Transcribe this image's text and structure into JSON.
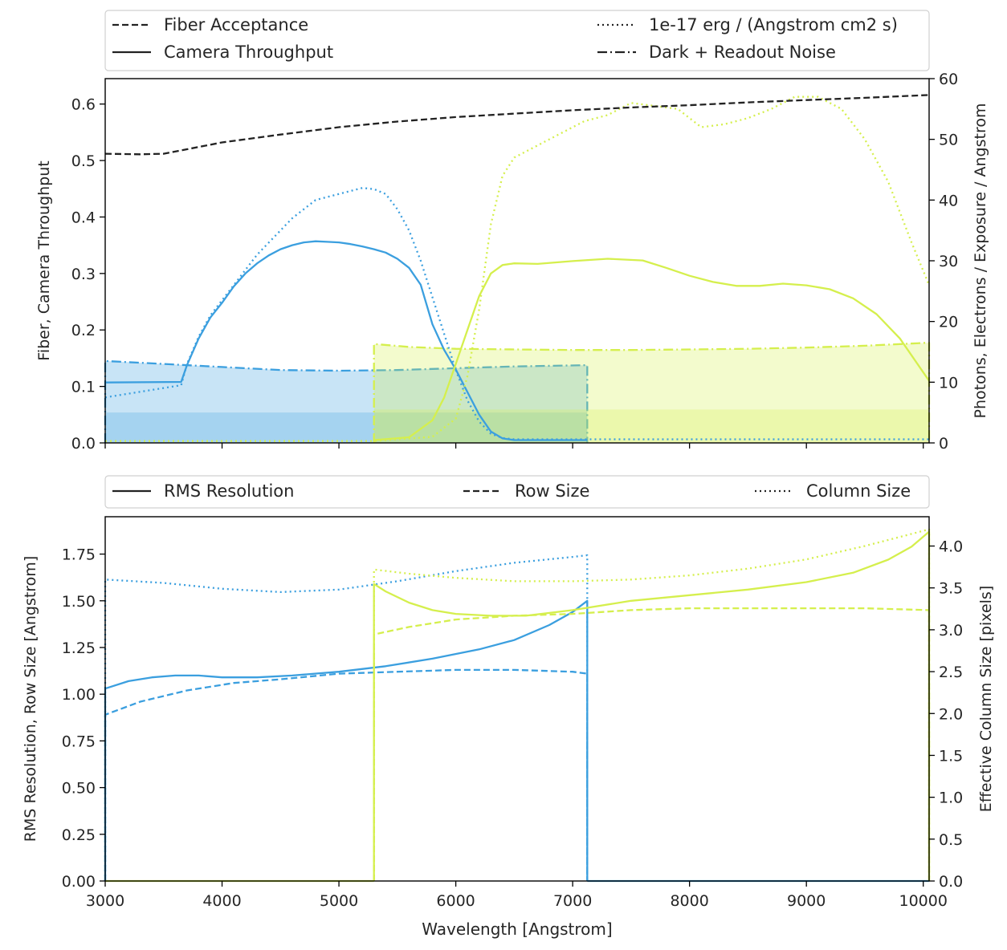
{
  "chart_data": [
    {
      "type": "line",
      "legend": {
        "placement": "above",
        "entries": [
          {
            "label": "Fiber Acceptance",
            "style": "dashed"
          },
          {
            "label": "1e-17 erg / (Angstrom cm2 s)",
            "style": "dotted"
          },
          {
            "label": "Camera Throughput",
            "style": "solid"
          },
          {
            "label": "Dark + Readout Noise",
            "style": "dashdot"
          }
        ]
      },
      "xlim": [
        3000,
        10050
      ],
      "xticks": [
        3000,
        4000,
        5000,
        6000,
        7000,
        8000,
        9000,
        10000
      ],
      "ylabel": "Fiber, Camera Throughput",
      "ylim": [
        0,
        0.645
      ],
      "yticks": [
        "0.0",
        "0.1",
        "0.2",
        "0.3",
        "0.4",
        "0.5",
        "0.6"
      ],
      "y2label": "Photons, Electrons / Exposure / Angstrom",
      "y2lim": [
        0,
        60
      ],
      "y2ticks": [
        "0",
        "10",
        "20",
        "30",
        "40",
        "50",
        "60"
      ],
      "fiber_acceptance": {
        "color": "#222222",
        "x": [
          3000,
          3300,
          3500,
          3700,
          4000,
          4500,
          5000,
          5500,
          6000,
          6500,
          7000,
          7500,
          8000,
          8500,
          9000,
          9500,
          10050
        ],
        "y": [
          0.512,
          0.511,
          0.512,
          0.52,
          0.532,
          0.546,
          0.559,
          0.569,
          0.577,
          0.583,
          0.589,
          0.594,
          0.598,
          0.603,
          0.607,
          0.611,
          0.616
        ]
      },
      "bands": [
        {
          "color": "#3b9fdf",
          "throughput": {
            "x": [
              3000,
              3650,
              3700,
              3800,
              3900,
              4000,
              4100,
              4200,
              4300,
              4400,
              4500,
              4600,
              4700,
              4800,
              4900,
              5000,
              5100,
              5200,
              5300,
              5400,
              5500,
              5600,
              5700,
              5800,
              5900,
              6000,
              6100,
              6200,
              6300,
              6400,
              6500,
              6600,
              7125
            ],
            "y": [
              0.107,
              0.108,
              0.138,
              0.185,
              0.222,
              0.248,
              0.277,
              0.3,
              0.318,
              0.332,
              0.343,
              0.35,
              0.355,
              0.357,
              0.356,
              0.355,
              0.352,
              0.348,
              0.343,
              0.337,
              0.326,
              0.31,
              0.28,
              0.21,
              0.165,
              0.13,
              0.09,
              0.05,
              0.02,
              0.008,
              0.005,
              0.005,
              0.005
            ]
          },
          "flux": {
            "x": [
              3000,
              3650,
              3700,
              3800,
              3900,
              4000,
              4100,
              4200,
              4300,
              4400,
              4500,
              4600,
              4700,
              4800,
              4900,
              5000,
              5100,
              5200,
              5300,
              5400,
              5500,
              5600,
              5700,
              5800,
              5900,
              6000,
              6100,
              6200,
              6300,
              6400,
              6500,
              7125,
              10050
            ],
            "y": [
              7.5,
              9.5,
              13,
              17.5,
              21,
              23.5,
              26,
              28.5,
              31,
              33,
              35,
              37,
              38.5,
              40,
              40.5,
              41,
              41.5,
              42,
              41.8,
              41,
              38.5,
              35,
              30,
              24,
              18,
              12,
              7,
              3.5,
              1.5,
              0.8,
              0.6,
              0.6,
              0.6
            ]
          },
          "noise": {
            "x": [
              3000,
              3500,
              4000,
              4500,
              5000,
              5500,
              6000,
              6500,
              7125
            ],
            "y": [
              13.5,
              13,
              12.5,
              12,
              11.9,
              12,
              12.3,
              12.6,
              12.8
            ]
          },
          "noise_range": [
            3000,
            7125
          ],
          "inner_band": 5
        },
        {
          "color": "#d5ef4d",
          "throughput": {
            "x": [
              5300,
              5600,
              5800,
              5900,
              6000,
              6100,
              6200,
              6300,
              6400,
              6500,
              6700,
              7000,
              7300,
              7600,
              7800,
              8000,
              8200,
              8400,
              8600,
              8800,
              9000,
              9200,
              9400,
              9600,
              9800,
              10050
            ],
            "y": [
              0.005,
              0.01,
              0.04,
              0.08,
              0.14,
              0.2,
              0.26,
              0.3,
              0.315,
              0.318,
              0.317,
              0.322,
              0.326,
              0.323,
              0.31,
              0.296,
              0.285,
              0.278,
              0.278,
              0.282,
              0.279,
              0.272,
              0.256,
              0.228,
              0.185,
              0.11
            ]
          },
          "flux": {
            "x": [
              3000,
              5300,
              5800,
              6000,
              6100,
              6200,
              6300,
              6400,
              6500,
              6700,
              6900,
              7100,
              7300,
              7500,
              7700,
              7900,
              8100,
              8300,
              8500,
              8700,
              8900,
              9100,
              9300,
              9500,
              9700,
              9900,
              10050
            ],
            "y": [
              0.3,
              0.3,
              1,
              4,
              11,
              22,
              36,
              44,
              47,
              49,
              51,
              53,
              54,
              56,
              55.5,
              55,
              52,
              52.5,
              53.5,
              55,
              57,
              57,
              55,
              50,
              43,
              33,
              26
            ]
          },
          "noise": {
            "x": [
              5300,
              5600,
              6000,
              6500,
              7000,
              7500,
              8000,
              8500,
              9000,
              9500,
              10050
            ],
            "y": [
              16.3,
              15.8,
              15.5,
              15.4,
              15.3,
              15.3,
              15.4,
              15.5,
              15.7,
              16,
              16.5
            ]
          },
          "noise_range": [
            5300,
            10050
          ],
          "inner_band": 5.5
        }
      ]
    },
    {
      "type": "line",
      "legend": {
        "placement": "above",
        "entries": [
          {
            "label": "RMS Resolution",
            "style": "solid"
          },
          {
            "label": "Row Size",
            "style": "dashed"
          },
          {
            "label": "Column Size",
            "style": "dotted"
          }
        ]
      },
      "xlabel": "Wavelength [Angstrom]",
      "xlim": [
        3000,
        10050
      ],
      "xticks": [
        3000,
        4000,
        5000,
        6000,
        7000,
        8000,
        9000,
        10000
      ],
      "ylabel": "RMS Resolution, Row Size [Angstrom]",
      "ylim": [
        0,
        1.95
      ],
      "yticks": [
        "0.00",
        "0.25",
        "0.50",
        "0.75",
        "1.00",
        "1.25",
        "1.50",
        "1.75"
      ],
      "y2label": "Effective Column Size [pixels]",
      "y2lim": [
        0,
        4.35
      ],
      "y2ticks": [
        "0.0",
        "0.5",
        "1.0",
        "1.5",
        "2.0",
        "2.5",
        "3.0",
        "3.5",
        "4.0"
      ],
      "bands": [
        {
          "color": "#3b9fdf",
          "range": [
            3000,
            7125
          ],
          "resolution": {
            "x": [
              3000,
              3200,
              3400,
              3600,
              3800,
              4000,
              4300,
              4600,
              5000,
              5400,
              5800,
              6200,
              6500,
              6800,
              7000,
              7125
            ],
            "y": [
              1.03,
              1.07,
              1.09,
              1.1,
              1.1,
              1.09,
              1.09,
              1.1,
              1.12,
              1.15,
              1.19,
              1.24,
              1.29,
              1.37,
              1.44,
              1.5
            ]
          },
          "row_size": {
            "x": [
              3000,
              3300,
              3700,
              4100,
              4500,
              5000,
              5500,
              6000,
              6500,
              7000,
              7125
            ],
            "y": [
              0.89,
              0.96,
              1.02,
              1.06,
              1.08,
              1.11,
              1.12,
              1.13,
              1.13,
              1.12,
              1.11
            ]
          },
          "column_size": {
            "x": [
              3000,
              3500,
              4000,
              4500,
              5000,
              5500,
              6000,
              6500,
              7000,
              7125
            ],
            "y": [
              3.6,
              3.56,
              3.49,
              3.45,
              3.48,
              3.58,
              3.7,
              3.8,
              3.87,
              3.89
            ]
          }
        },
        {
          "color": "#d5ef4d",
          "range": [
            5300,
            10050
          ],
          "resolution": {
            "x": [
              5300,
              5400,
              5600,
              5800,
              6000,
              6300,
              6600,
              7000,
              7500,
              8000,
              8500,
              9000,
              9400,
              9700,
              9900,
              10050
            ],
            "y": [
              1.59,
              1.55,
              1.49,
              1.45,
              1.43,
              1.42,
              1.42,
              1.45,
              1.5,
              1.53,
              1.56,
              1.6,
              1.65,
              1.72,
              1.79,
              1.87
            ]
          },
          "row_size": {
            "x": [
              5300,
              5600,
              6000,
              6500,
              7000,
              7500,
              8000,
              8500,
              9000,
              9500,
              10050
            ],
            "y": [
              1.32,
              1.36,
              1.4,
              1.42,
              1.43,
              1.45,
              1.46,
              1.46,
              1.46,
              1.46,
              1.45
            ]
          },
          "column_size": {
            "x": [
              5300,
              5600,
              6000,
              6500,
              7000,
              7500,
              8000,
              8500,
              9000,
              9500,
              10050
            ],
            "y": [
              3.72,
              3.67,
              3.62,
              3.58,
              3.58,
              3.6,
              3.65,
              3.73,
              3.84,
              4.0,
              4.2
            ]
          }
        }
      ]
    }
  ]
}
